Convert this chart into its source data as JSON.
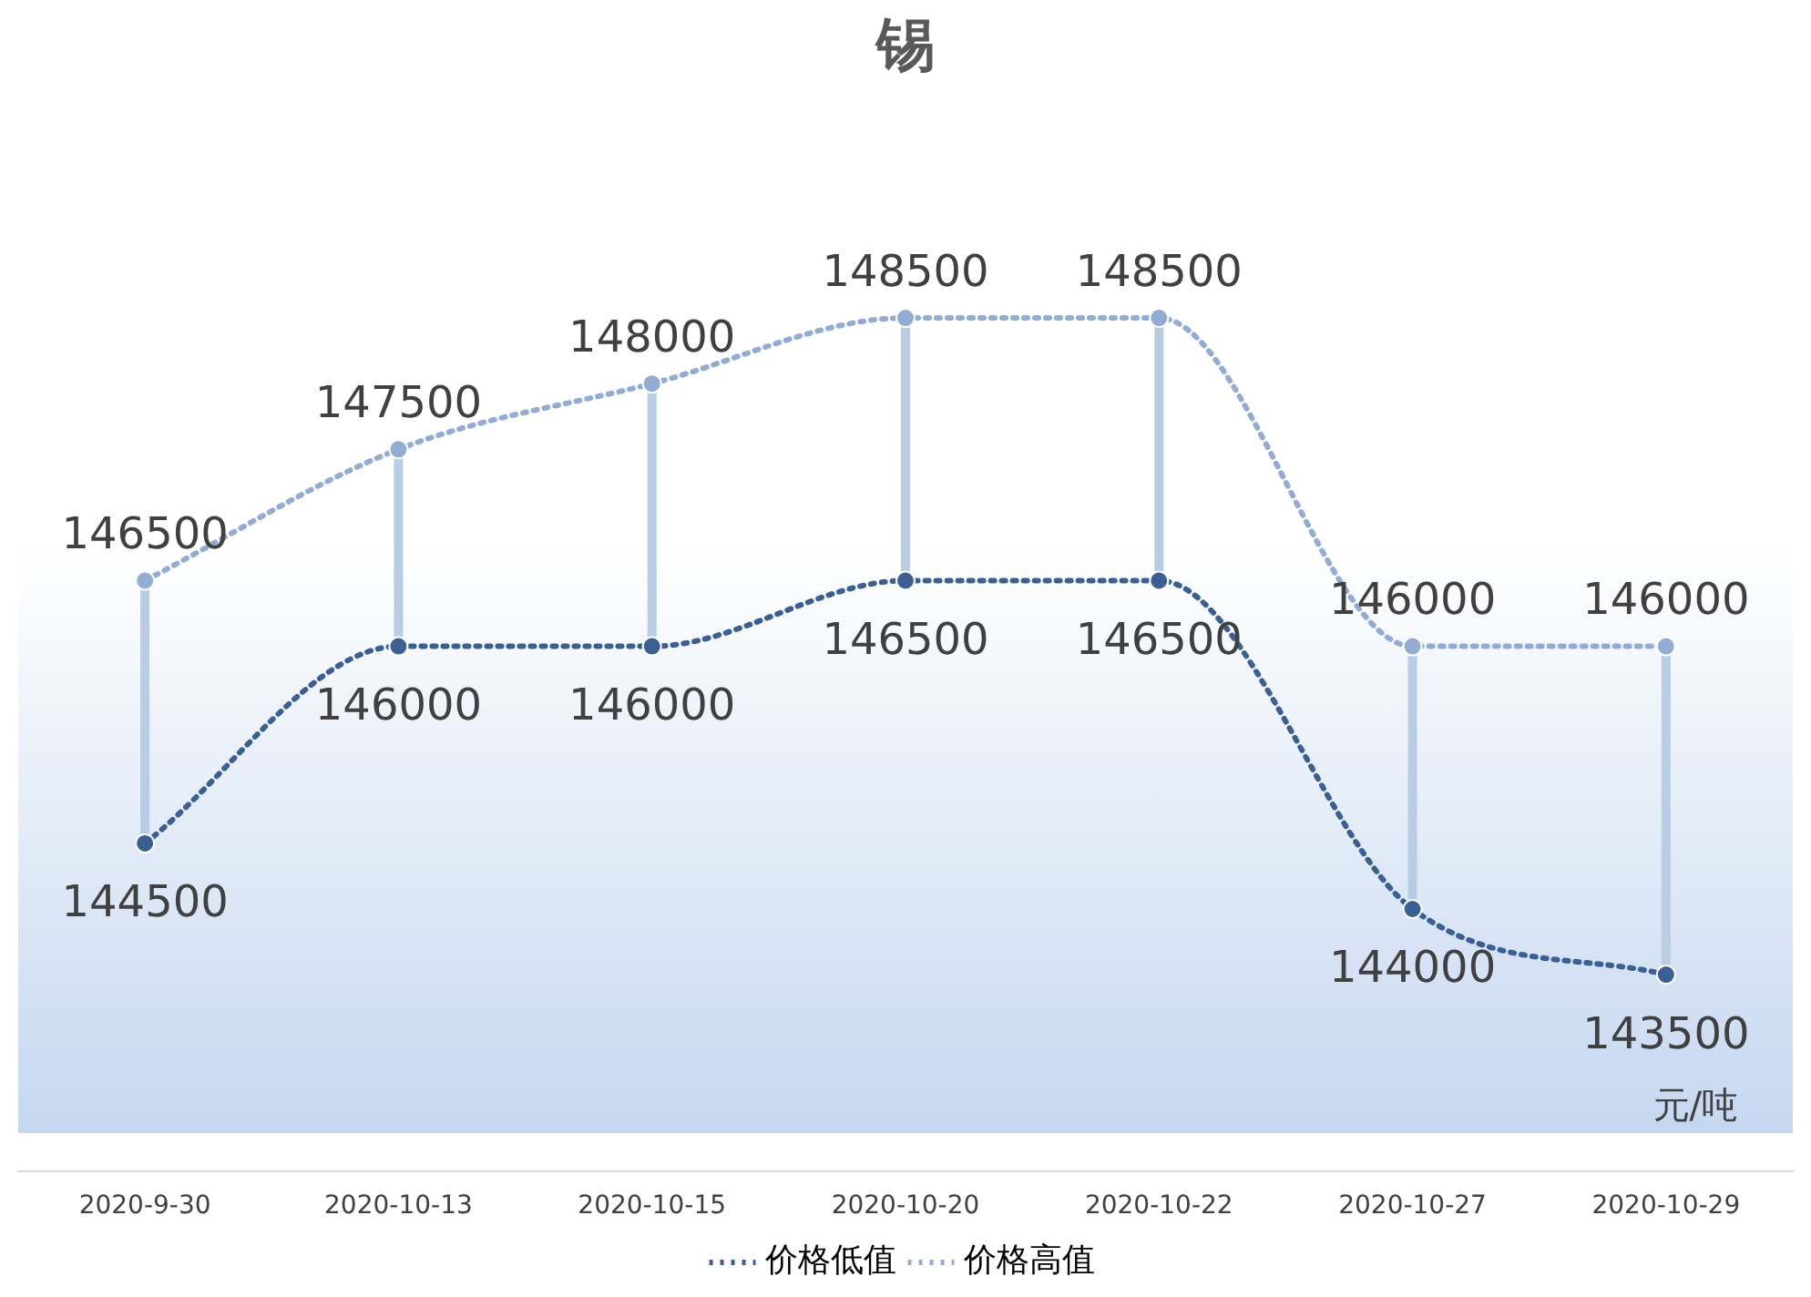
{
  "chart_data": {
    "type": "line",
    "title": "锡",
    "annotations": [
      "元/吨"
    ],
    "categories": [
      "2020-9-30",
      "2020-10-13",
      "2020-10-15",
      "2020-10-20",
      "2020-10-22",
      "2020-10-27",
      "2020-10-29"
    ],
    "tick_labels": "x",
    "grid": false,
    "legend": "bottom",
    "marker": "circle",
    "line_style": "dotted",
    "data_labels": true,
    "series": [
      {
        "name": "价格低值",
        "color": "#3a5f93",
        "values": [
          144500,
          146000,
          146000,
          146500,
          146500,
          144000,
          143500
        ]
      },
      {
        "name": "价格高值",
        "color": "#92acd4",
        "values": [
          146500,
          147500,
          148000,
          148500,
          148500,
          146000,
          146000
        ]
      }
    ]
  }
}
